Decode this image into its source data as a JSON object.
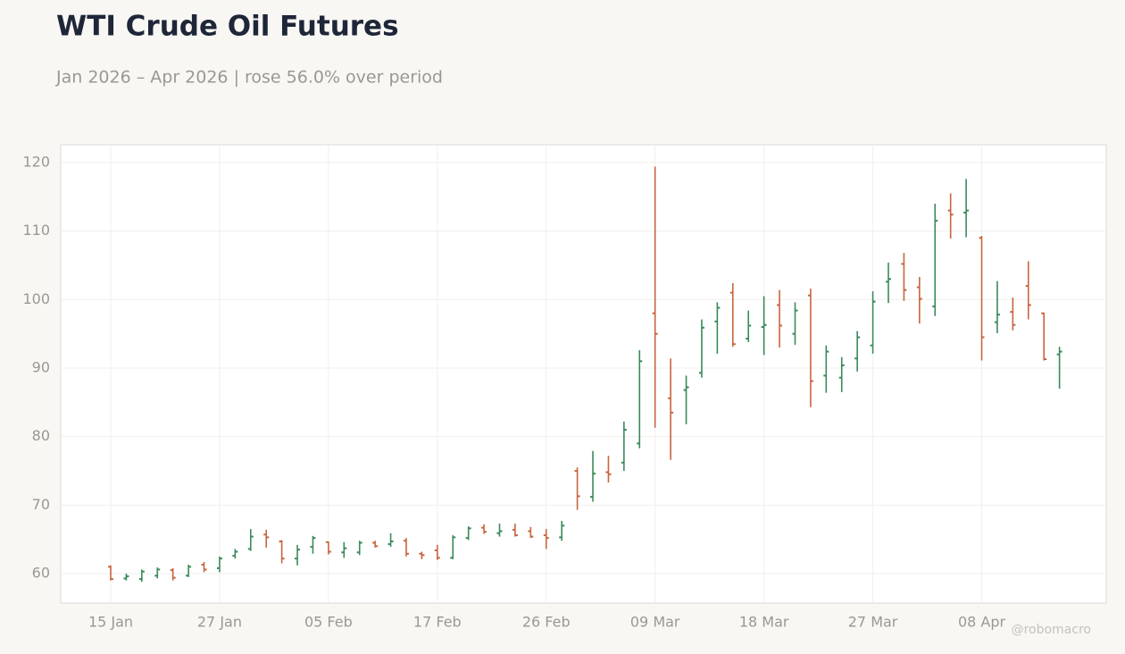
{
  "chart_data": {
    "type": "ohlc",
    "title": "WTI Crude Oil Futures",
    "subtitle": "Jan 2026 – Apr 2026 | rose 56.0% over period",
    "watermark": "@robomacro",
    "categories": [
      "15 Jan",
      null,
      null,
      null,
      null,
      null,
      null,
      "27 Jan",
      null,
      null,
      null,
      null,
      null,
      null,
      "05 Feb",
      null,
      null,
      null,
      null,
      null,
      null,
      "17 Feb",
      null,
      null,
      null,
      null,
      null,
      null,
      "26 Feb",
      null,
      null,
      null,
      null,
      null,
      null,
      "09 Mar",
      null,
      null,
      null,
      null,
      null,
      null,
      "18 Mar",
      null,
      null,
      null,
      null,
      null,
      null,
      "27 Mar",
      null,
      null,
      null,
      null,
      null,
      null,
      "08 Apr",
      null,
      null,
      null,
      null,
      null
    ],
    "open": [
      61,
      59.3,
      59.2,
      59.7,
      60.5,
      59.7,
      61.3,
      60.8,
      62.6,
      63.6,
      65.7,
      64.7,
      62.2,
      63.9,
      64.6,
      63.1,
      63.1,
      64.5,
      64.3,
      64.8,
      62.9,
      63.4,
      62.3,
      65.2,
      66.7,
      65.9,
      66.4,
      66.2,
      65.6,
      65.3,
      75,
      71.2,
      74.8,
      76.2,
      79,
      98,
      85.6,
      86.8,
      89.3,
      96.8,
      101,
      94.3,
      96,
      99.2,
      95,
      100.6,
      88.9,
      88.6,
      91.4,
      93.3,
      102.6,
      105.2,
      101.8,
      99,
      113,
      112.7,
      109,
      96.7,
      98.2,
      102,
      98,
      92
    ],
    "high": [
      61.2,
      60,
      60.6,
      60.9,
      60.8,
      61.3,
      61.7,
      62.5,
      63.6,
      66.5,
      66.4,
      64.9,
      64.2,
      65.5,
      64.7,
      64.6,
      64.8,
      64.8,
      65.9,
      65.2,
      63.2,
      64.2,
      65.6,
      66.9,
      67.2,
      67.3,
      67.3,
      66.8,
      66.5,
      67.7,
      75.5,
      77.9,
      77.2,
      82.2,
      92.6,
      119.4,
      91.4,
      88.9,
      97.1,
      99.6,
      102.4,
      98.4,
      100.5,
      101.4,
      99.6,
      101.6,
      93.3,
      91.6,
      95.4,
      101.2,
      105.4,
      106.8,
      103.3,
      114,
      115.5,
      117.6,
      109.3,
      102.7,
      100.3,
      105.6,
      98.1,
      93.1
    ],
    "low": [
      59,
      59,
      58.8,
      59.3,
      59,
      59.5,
      60.2,
      60.2,
      62.2,
      63.3,
      63.8,
      61.5,
      61.2,
      62.9,
      62.8,
      62.3,
      62.7,
      63.8,
      63.9,
      62.5,
      62.1,
      62,
      62.1,
      64.9,
      65.8,
      65.4,
      65.4,
      65.2,
      63.6,
      64.8,
      69.3,
      70.5,
      73.3,
      75,
      78.3,
      81.3,
      76.6,
      81.8,
      88.6,
      92.1,
      93.1,
      93.8,
      91.9,
      93,
      93.4,
      84.3,
      86.4,
      86.5,
      89.5,
      92.1,
      99.5,
      99.8,
      96.5,
      97.6,
      108.9,
      109.1,
      91.1,
      95.1,
      95.5,
      97.1,
      91.1,
      87
    ],
    "close": [
      59.2,
      59.6,
      60.3,
      60.6,
      59.4,
      61,
      60.6,
      62.2,
      63.2,
      65.4,
      65.3,
      62.2,
      63.5,
      65.2,
      63.2,
      63.7,
      64.5,
      64,
      64.7,
      62.9,
      62.7,
      62.3,
      65.3,
      66.6,
      66.1,
      66.2,
      65.6,
      65.4,
      65.2,
      67,
      71.3,
      74.6,
      74.5,
      81,
      91,
      95,
      83.5,
      87.2,
      95.9,
      98.8,
      93.5,
      96.2,
      96.3,
      96.2,
      98.4,
      88.1,
      92.4,
      90.4,
      94.5,
      99.7,
      103,
      101.4,
      100.1,
      111.5,
      112.4,
      113,
      94.5,
      97.8,
      96.3,
      99.2,
      91.3,
      92.4
    ],
    "up_color": "#3a8a5a",
    "down_color": "#c8653f",
    "ylim": [
      55.7,
      122.6
    ],
    "yticks": [
      60,
      70,
      80,
      90,
      100,
      110,
      120
    ],
    "grid": true
  }
}
